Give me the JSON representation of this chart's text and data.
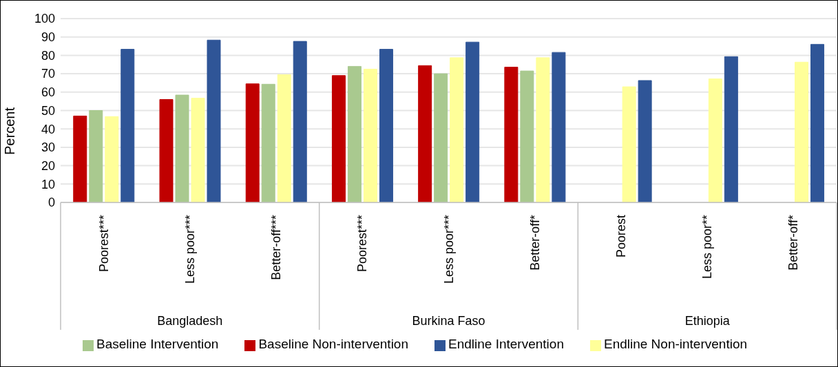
{
  "chart_data": {
    "type": "bar",
    "ylabel": "Percent",
    "categories": [
      "Poorest***",
      "Less poor***",
      "Better-off***",
      "Poorest***",
      "Less poor***",
      "Better-off*",
      "Poorest",
      "Less poor**",
      "Better-off*"
    ],
    "annotations": [
      "Bangladesh",
      "Burkina Faso",
      "Ethiopia"
    ],
    "series": [
      {
        "name": "Baseline Non-intervention",
        "color": "#c00000",
        "values": [
          47,
          56,
          64.5,
          69,
          74.4,
          73.6,
          null,
          null,
          null
        ]
      },
      {
        "name": "Baseline Intervention",
        "color": "#a9c98f",
        "values": [
          50,
          58.4,
          64.3,
          74,
          70,
          71.5,
          null,
          null,
          null
        ]
      },
      {
        "name": "Endline Non-intervention",
        "color": "#ffff99",
        "values": [
          46.7,
          56.7,
          69.5,
          72.5,
          78.7,
          78.7,
          62.9,
          67.2,
          76.3
        ]
      },
      {
        "name": "Endline Intervention",
        "color": "#2f5597",
        "values": [
          83.3,
          88.3,
          87.6,
          83.3,
          87.2,
          81.6,
          66.3,
          79.3,
          86
        ]
      }
    ],
    "ylim": [
      0,
      100
    ],
    "yticks": [
      0,
      10,
      20,
      30,
      40,
      50,
      60,
      70,
      80,
      90,
      100
    ],
    "grid": "y",
    "legend": "bottom"
  }
}
